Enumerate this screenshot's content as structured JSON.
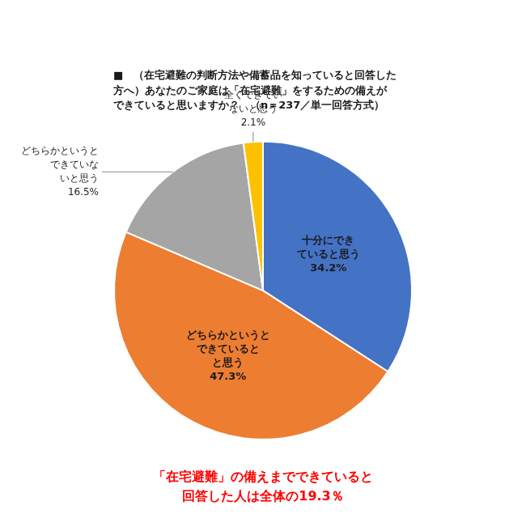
{
  "chart_data": {
    "type": "pie",
    "title": [
      "■　（在宅避難の判断方法や備蓄品を知っていると回答した",
      "方へ）あなたのご家庭は「在宅避難」をするための備えが",
      "できていると思いますか？　（n＝237／単一回答方式）"
    ],
    "categories": [
      "十分にでき\nていると思う",
      "どちらかというと\nできていると\nと思う",
      "どちらかというと\nできていな\nいと思う",
      "全くできてい\nないと思う"
    ],
    "values": [
      34.2,
      47.3,
      16.5,
      2.1
    ],
    "value_labels": [
      "34.2%",
      "47.3%",
      "16.5%",
      "2.1%"
    ],
    "colors": [
      "#4472C4",
      "#ED7D31",
      "#A5A5A5",
      "#FFC000"
    ],
    "data_labels": true,
    "annotations": [
      {
        "text": [
          "「在宅避難」の備えまでできていると",
          "回答した人は全体の19.3％"
        ],
        "color": "#FF0000"
      }
    ]
  }
}
